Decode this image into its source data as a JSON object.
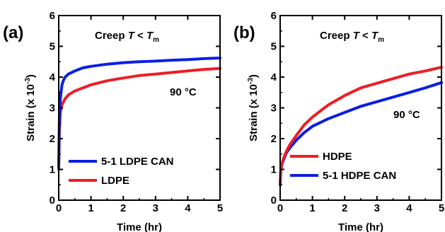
{
  "chart_data": [
    {
      "type": "line",
      "panel_label": "(a)",
      "annotation_title": {
        "prefix": "Creep ",
        "T": "T",
        "lt": " < ",
        "Tm": "T",
        "sub": "m"
      },
      "annotation_temp": "90 °C",
      "xlabel": "Time (hr)",
      "ylabel": {
        "prefix": "Strain (x 10",
        "sup": "-3",
        "suffix": ")"
      },
      "xlim": [
        0,
        5
      ],
      "ylim": [
        0,
        6
      ],
      "xticks": [
        "0",
        "1",
        "2",
        "3",
        "4",
        "5"
      ],
      "yticks": [
        "0",
        "1",
        "2",
        "3",
        "4",
        "5",
        "6"
      ],
      "legend_position": "bottom-left",
      "colors": {
        "primary": "#0a1ee6",
        "secondary": "#ee1c25"
      },
      "series": [
        {
          "name": "5-1 LDPE CAN",
          "color": "#0a1ee6",
          "x": [
            0,
            0.02,
            0.05,
            0.1,
            0.15,
            0.2,
            0.3,
            0.5,
            0.75,
            1.0,
            1.5,
            2.0,
            2.5,
            3.0,
            3.5,
            4.0,
            4.5,
            5.0
          ],
          "y": [
            1.1,
            2.6,
            3.3,
            3.75,
            3.9,
            4.0,
            4.1,
            4.2,
            4.3,
            4.35,
            4.42,
            4.47,
            4.5,
            4.52,
            4.55,
            4.57,
            4.6,
            4.62
          ]
        },
        {
          "name": "LDPE",
          "color": "#ee1c25",
          "x": [
            0,
            0.02,
            0.05,
            0.1,
            0.15,
            0.2,
            0.3,
            0.5,
            0.75,
            1.0,
            1.5,
            2.0,
            2.5,
            3.0,
            3.5,
            4.0,
            4.5,
            5.0
          ],
          "y": [
            1.0,
            2.2,
            2.85,
            3.1,
            3.2,
            3.3,
            3.42,
            3.55,
            3.65,
            3.75,
            3.88,
            3.97,
            4.05,
            4.1,
            4.15,
            4.2,
            4.25,
            4.28
          ]
        }
      ]
    },
    {
      "type": "line",
      "panel_label": "(b)",
      "annotation_title": {
        "prefix": "Creep ",
        "T": "T",
        "lt": " < ",
        "Tm": "T",
        "sub": "m"
      },
      "annotation_temp": "90 °C",
      "xlabel": "Time (hr)",
      "ylabel": {
        "prefix": "Strain (x 10",
        "sup": "-3",
        "suffix": ")"
      },
      "xlim": [
        0,
        5
      ],
      "ylim": [
        0,
        6
      ],
      "xticks": [
        "0",
        "1",
        "2",
        "3",
        "4",
        "5"
      ],
      "yticks": [
        "0",
        "1",
        "2",
        "3",
        "4",
        "5",
        "6"
      ],
      "legend_position": "bottom-left",
      "colors": {
        "primary": "#ee1c25",
        "secondary": "#0a1ee6"
      },
      "series": [
        {
          "name": "HDPE",
          "color": "#ee1c25",
          "x": [
            0,
            0.02,
            0.05,
            0.1,
            0.2,
            0.3,
            0.5,
            0.75,
            1.0,
            1.5,
            2.0,
            2.5,
            3.0,
            3.5,
            4.0,
            4.5,
            5.0
          ],
          "y": [
            0.5,
            0.95,
            1.15,
            1.35,
            1.6,
            1.8,
            2.1,
            2.45,
            2.7,
            3.1,
            3.4,
            3.65,
            3.8,
            3.95,
            4.1,
            4.2,
            4.32
          ]
        },
        {
          "name": "5-1 HDPE CAN",
          "color": "#0a1ee6",
          "x": [
            0,
            0.02,
            0.05,
            0.1,
            0.2,
            0.3,
            0.5,
            0.75,
            1.0,
            1.5,
            2.0,
            2.5,
            3.0,
            3.5,
            4.0,
            4.5,
            5.0
          ],
          "y": [
            0.5,
            0.95,
            1.15,
            1.3,
            1.55,
            1.7,
            1.95,
            2.2,
            2.4,
            2.65,
            2.85,
            3.05,
            3.2,
            3.35,
            3.5,
            3.65,
            3.82
          ]
        }
      ]
    }
  ]
}
